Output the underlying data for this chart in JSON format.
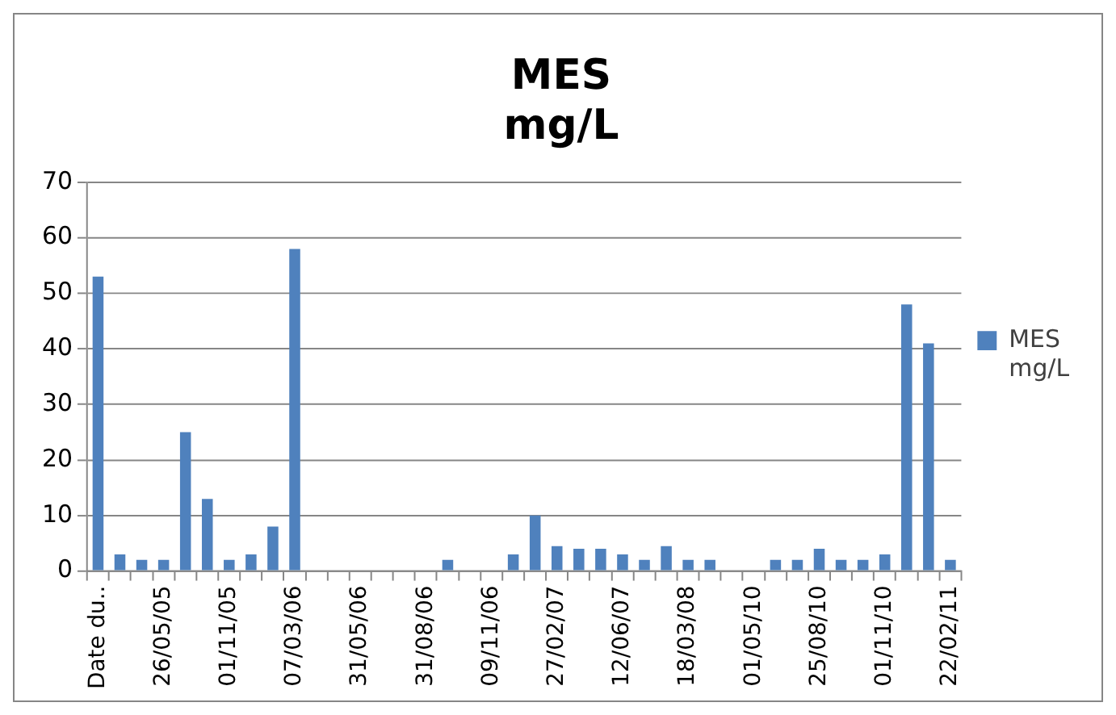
{
  "chart_data": {
    "type": "bar",
    "title": "MES mg/L",
    "categories": [
      "Date du..",
      null,
      null,
      "26/05/05",
      null,
      null,
      "01/11/05",
      null,
      null,
      "07/03/06",
      null,
      null,
      "31/05/06",
      null,
      null,
      "31/08/06",
      null,
      null,
      "09/11/06",
      null,
      null,
      "27/02/07",
      null,
      null,
      "12/06/07",
      null,
      null,
      "18/03/08",
      null,
      null,
      "01/05/10",
      null,
      null,
      "25/08/10",
      null,
      null,
      "01/11/10",
      null,
      null,
      "22/02/11"
    ],
    "series": [
      {
        "name": "MES mg/L",
        "color": "#4f81bd",
        "values": [
          53,
          3,
          2,
          2,
          25,
          13,
          2,
          3,
          8,
          58,
          null,
          null,
          null,
          null,
          null,
          null,
          2,
          null,
          null,
          3,
          10,
          4.5,
          4,
          4,
          3,
          2,
          4.5,
          2,
          2,
          null,
          null,
          2,
          2,
          4,
          2,
          2,
          3,
          48,
          41,
          2
        ]
      }
    ],
    "ylim": [
      0,
      70
    ],
    "yticks": [
      0,
      10,
      20,
      30,
      40,
      50,
      60,
      70
    ],
    "grid": "y",
    "legend": "right"
  }
}
